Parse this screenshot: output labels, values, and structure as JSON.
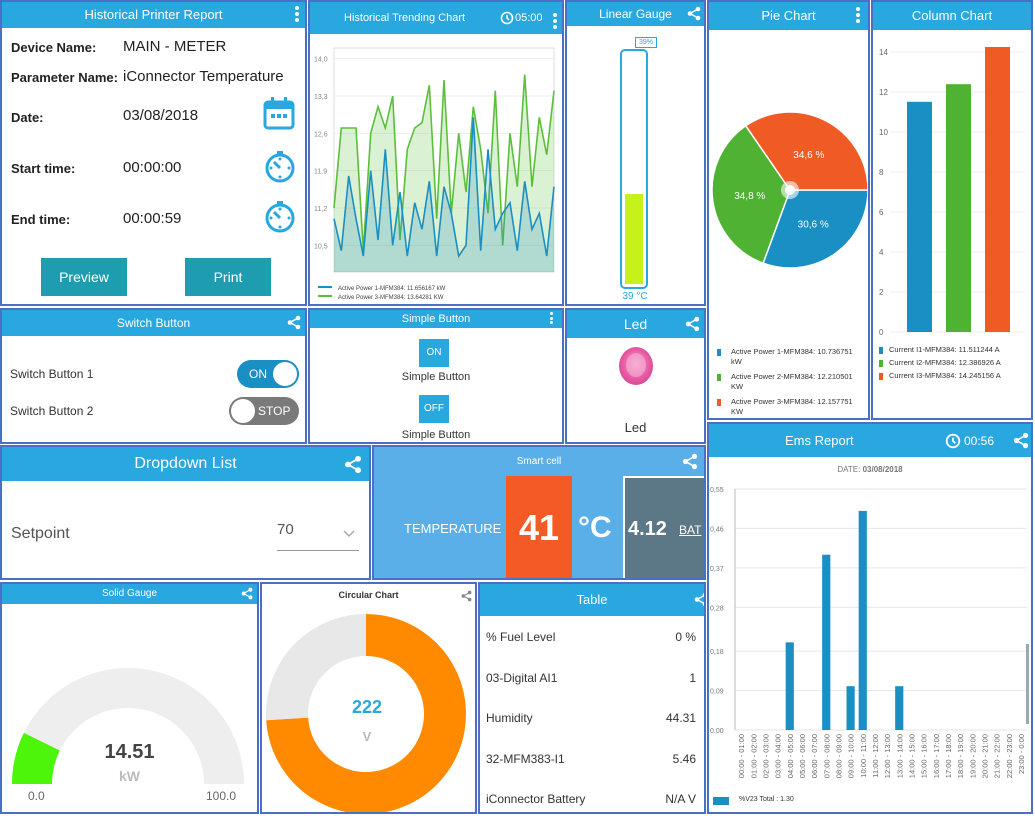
{
  "historical_report": {
    "title": "Historical Printer Report",
    "device_label": "Device Name:",
    "device_value": "MAIN - METER",
    "parameter_label": "Parameter Name:",
    "parameter_value": "iConnector Temperature",
    "date_label": "Date:",
    "date_value": "03/08/2018",
    "start_label": "Start time:",
    "start_value": "00:00:00",
    "end_label": "End time:",
    "end_value": "00:00:59",
    "preview_label": "Preview",
    "print_label": "Print"
  },
  "trending": {
    "title": "Historical Trending Chart",
    "timer": "05:00",
    "legend": [
      "Active Power 1-MFM384: 11.656167 kW",
      "Active Power 3-MFM384: 13.64281 KW"
    ],
    "chart_data": {
      "type": "area",
      "ylim": [
        10.0,
        14.2
      ],
      "yticks": [
        "14,0",
        "13,3",
        "12,6",
        "11,9",
        "11,2",
        "10,5"
      ],
      "series": [
        {
          "name": "Active Power 1-MFM384: 11.656167 kW",
          "color": "#1a8fc4",
          "values": [
            11.0,
            10.4,
            11.8,
            11.0,
            10.3,
            11.9,
            10.6,
            12.3,
            10.5,
            11.5,
            10.3,
            11.3,
            10.8,
            11.7,
            10.3,
            11.6,
            11.1,
            10.3,
            10.5,
            12.9,
            10.4,
            12.3,
            10.8,
            11.1,
            11.3,
            10.4,
            11.7,
            10.8,
            11.1,
            10.3,
            11.6
          ]
        },
        {
          "name": "Active Power 3-MFM384: 13.64281 KW",
          "color": "#5cbf3a",
          "values": [
            11.2,
            12.7,
            12.7,
            12.7,
            10.4,
            12.6,
            13.1,
            12.7,
            13.3,
            10.6,
            12.3,
            12.7,
            12.8,
            13.5,
            11.0,
            13.6,
            11.1,
            12.6,
            11.5,
            13.1,
            12.3,
            11.1,
            13.4,
            10.5,
            12.6,
            11.6,
            13.7,
            11.6,
            12.9,
            12.2,
            13.4
          ]
        }
      ]
    }
  },
  "linear_gauge": {
    "title": "Linear Gauge",
    "badge": "39%",
    "value_label": "39 °C",
    "fill_fraction": 0.39
  },
  "pie": {
    "title": "Pie Chart",
    "legend": [
      "Active Power 1-MFM384: 10.736751 kW",
      "Active Power 2-MFM384: 12.210501 KW",
      "Active Power 3-MFM384: 12.157751 KW"
    ],
    "chart_data": {
      "type": "pie",
      "slices": [
        {
          "label": "30,6 %",
          "value": 30.6,
          "color": "#1a8fc4"
        },
        {
          "label": "34,8 %",
          "value": 34.8,
          "color": "#4fb233"
        },
        {
          "label": "34,6 %",
          "value": 34.6,
          "color": "#f05a24"
        }
      ]
    }
  },
  "column": {
    "title": "Column Chart",
    "legend": [
      "Current I1-MFM384: 11.511244 A",
      "Current I2-MFM384: 12.386926 A",
      "Current I3-MFM384: 14.245156 A"
    ],
    "chart_data": {
      "type": "bar",
      "yticks": [
        "14",
        "12",
        "10",
        "8",
        "6",
        "4",
        "2",
        "0"
      ],
      "ylim": [
        0,
        14
      ],
      "values": [
        11.51,
        12.39,
        14.25
      ],
      "colors": [
        "#1a8fc4",
        "#4fb233",
        "#f05a24"
      ]
    }
  },
  "switch_panel": {
    "title": "Switch Button",
    "sw1_label": "Switch Button 1",
    "sw1_state": "ON",
    "sw2_label": "Switch Button 2",
    "sw2_state": "STOP"
  },
  "simple_button": {
    "title": "Simple Button",
    "btn1": "ON",
    "label1": "Simple Button",
    "btn2": "OFF",
    "label2": "Simple Button"
  },
  "led": {
    "title": "Led",
    "label": "Led"
  },
  "dropdown": {
    "title": "Dropdown List",
    "label": "Setpoint",
    "value": "70"
  },
  "smart_cell": {
    "title": "Smart cell",
    "label": "TEMPERATURE",
    "value": "41",
    "unit": "°C",
    "battery": "4.12",
    "battery_unit": "BAT"
  },
  "ems": {
    "title": "Ems Report",
    "timer": "00:56",
    "date_label": "DATE:",
    "date_value": "03/08/2018",
    "legend": "%V23 Total : 1.30",
    "chart_data": {
      "type": "bar",
      "yticks": [
        "0,55",
        "0,46",
        "0,37",
        "0,28",
        "0,18",
        "0,09",
        "0,00"
      ],
      "ylim": [
        0,
        0.55
      ],
      "categories": [
        "00:00 - 01:00",
        "01:00 - 02:00",
        "02:00 - 03:00",
        "03:00 - 04:00",
        "04:00 - 05:00",
        "05:00 - 06:00",
        "06:00 - 07:00",
        "07:00 - 08:00",
        "08:00 - 09:00",
        "09:00 - 10:00",
        "10:00 - 11:00",
        "11:00 - 12:00",
        "12:00 - 13:00",
        "13:00 - 14:00",
        "14:00 - 15:00",
        "15:00 - 16:00",
        "16:00 - 17:00",
        "17:00 - 18:00",
        "18:00 - 19:00",
        "19:00 - 20:00",
        "20:00 - 21:00",
        "21:00 - 22:00",
        "22:00 - 23:00",
        "23:00 - 0:00"
      ],
      "values": [
        0,
        0,
        0,
        0,
        0.2,
        0,
        0,
        0.4,
        0,
        0.1,
        0.5,
        0,
        0,
        0.1,
        0,
        0,
        0,
        0,
        0,
        0,
        0,
        0,
        0,
        0
      ]
    }
  },
  "solid_gauge": {
    "title": "Solid Gauge",
    "value": "14.51",
    "unit": "kW",
    "min": "0.0",
    "max": "100.0",
    "fraction": 0.1451
  },
  "circular": {
    "title": "Circular Chart",
    "value": "222",
    "unit": "V",
    "fraction": 0.74
  },
  "table": {
    "title": "Table",
    "rows": [
      {
        "name": "% Fuel Level",
        "value": "0 %"
      },
      {
        "name": "03-Digital AI1",
        "value": "1"
      },
      {
        "name": "Humidity",
        "value": "44.31"
      },
      {
        "name": "32-MFM383-I1",
        "value": "5.46"
      },
      {
        "name": "iConnector Battery",
        "value": "N/A V"
      }
    ]
  },
  "colors": {
    "header": "#29a8e0",
    "border": "#4a6fc4",
    "button": "#1e9cb0"
  },
  "icons": [
    "kebab-menu-icon",
    "share-icon",
    "calendar-icon",
    "timer-icon",
    "history-icon",
    "chevron-down-icon"
  ]
}
